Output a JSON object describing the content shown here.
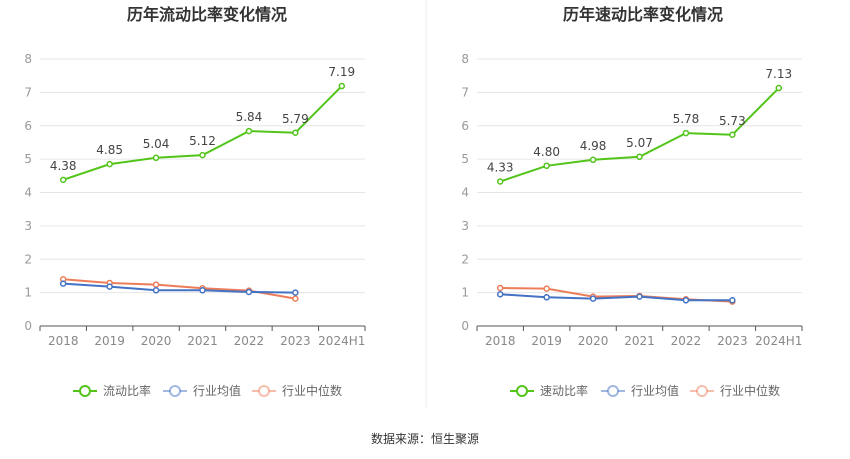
{
  "source": "数据来源：恒生聚源",
  "colors": {
    "main": "#52c41a",
    "avg": "#4472c4",
    "median": "#ed7d59"
  },
  "chart_data": [
    {
      "type": "line",
      "title": "历年流动比率变化情况",
      "categories": [
        "2018",
        "2019",
        "2020",
        "2021",
        "2022",
        "2023",
        "2024H1"
      ],
      "ylim": [
        0,
        8
      ],
      "yticks": [
        0,
        1,
        2,
        3,
        4,
        5,
        6,
        7,
        8
      ],
      "grid": true,
      "legend": "bottom",
      "series": [
        {
          "name": "流动比率",
          "values": [
            4.38,
            4.85,
            5.04,
            5.12,
            5.84,
            5.79,
            7.19
          ],
          "labels": [
            "4.38",
            "4.85",
            "5.04",
            "5.12",
            "5.84",
            "5.79",
            "7.19"
          ],
          "color": "#52c41a"
        },
        {
          "name": "行业均值",
          "values": [
            1.27,
            1.18,
            1.07,
            1.07,
            1.02,
            1.0,
            null
          ],
          "color": "#4472c4"
        },
        {
          "name": "行业中位数",
          "values": [
            1.4,
            1.29,
            1.24,
            1.13,
            1.06,
            0.82,
            null
          ],
          "color": "#ed7d59"
        }
      ]
    },
    {
      "type": "line",
      "title": "历年速动比率变化情况",
      "categories": [
        "2018",
        "2019",
        "2020",
        "2021",
        "2022",
        "2023",
        "2024H1"
      ],
      "ylim": [
        0,
        8
      ],
      "yticks": [
        0,
        1,
        2,
        3,
        4,
        5,
        6,
        7,
        8
      ],
      "grid": true,
      "legend": "bottom",
      "series": [
        {
          "name": "速动比率",
          "values": [
            4.33,
            4.8,
            4.98,
            5.07,
            5.78,
            5.73,
            7.13
          ],
          "labels": [
            "4.33",
            "4.80",
            "4.98",
            "5.07",
            "5.78",
            "5.73",
            "7.13"
          ],
          "color": "#52c41a"
        },
        {
          "name": "行业均值",
          "values": [
            0.95,
            0.86,
            0.82,
            0.88,
            0.77,
            0.77,
            null
          ],
          "color": "#4472c4"
        },
        {
          "name": "行业中位数",
          "values": [
            1.14,
            1.12,
            0.88,
            0.9,
            0.8,
            0.73,
            null
          ],
          "color": "#ed7d59"
        }
      ]
    }
  ]
}
